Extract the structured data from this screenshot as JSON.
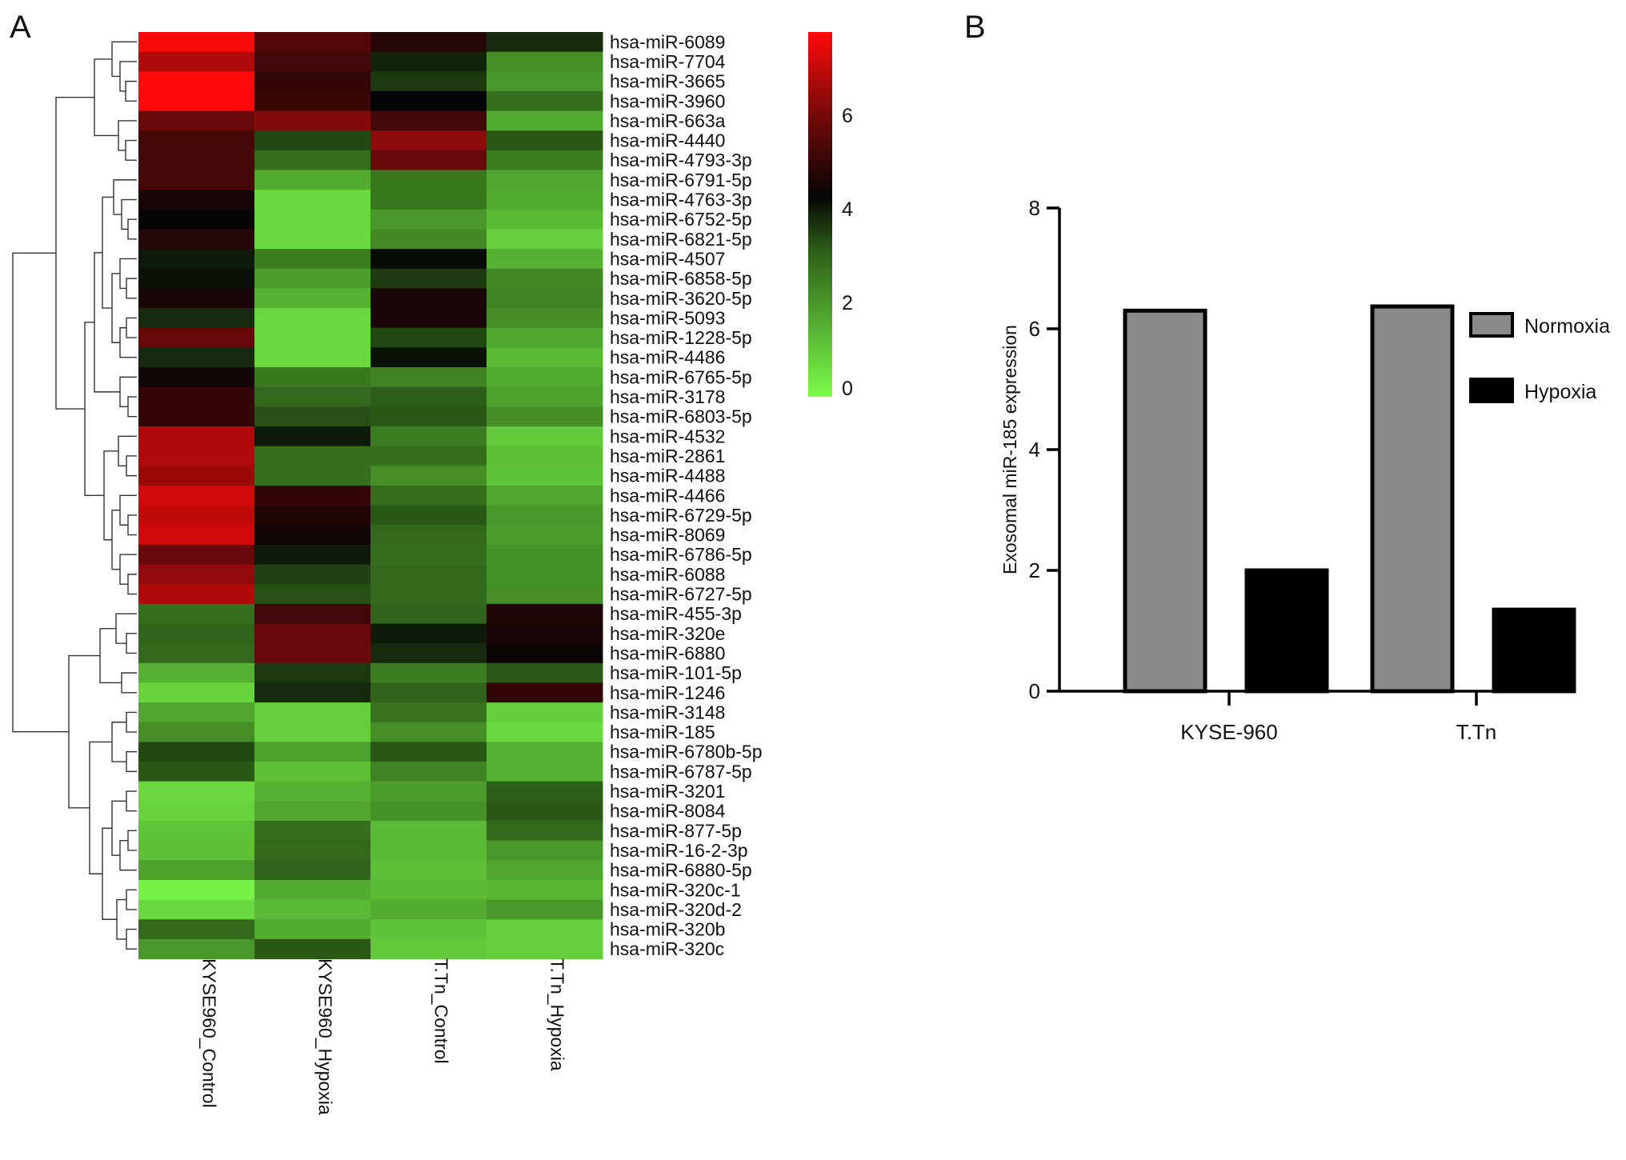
{
  "panels": {
    "a_label": "A",
    "b_label": "B"
  },
  "chart_data": [
    {
      "type": "heatmap",
      "columns": [
        "KYSE960_Control",
        "KYSE960_Hypoxia",
        "T.Tn_Control",
        "T.Tn_Hypoxia"
      ],
      "rows": [
        "hsa-miR-6089",
        "hsa-miR-7704",
        "hsa-miR-3665",
        "hsa-miR-3960",
        "hsa-miR-663a",
        "hsa-miR-4440",
        "hsa-miR-4793-3p",
        "hsa-miR-6791-5p",
        "hsa-miR-4763-3p",
        "hsa-miR-6752-5p",
        "hsa-miR-6821-5p",
        "hsa-miR-4507",
        "hsa-miR-6858-5p",
        "hsa-miR-3620-5p",
        "hsa-miR-5093",
        "hsa-miR-1228-5p",
        "hsa-miR-4486",
        "hsa-miR-6765-5p",
        "hsa-miR-3178",
        "hsa-miR-6803-5p",
        "hsa-miR-4532",
        "hsa-miR-2861",
        "hsa-miR-4488",
        "hsa-miR-4466",
        "hsa-miR-6729-5p",
        "hsa-miR-8069",
        "hsa-miR-6786-5p",
        "hsa-miR-6088",
        "hsa-miR-6727-5p",
        "hsa-miR-455-3p",
        "hsa-miR-320e",
        "hsa-miR-6880",
        "hsa-miR-101-5p",
        "hsa-miR-1246",
        "hsa-miR-3148",
        "hsa-miR-185",
        "hsa-miR-6780b-5p",
        "hsa-miR-6787-5p",
        "hsa-miR-3201",
        "hsa-miR-8084",
        "hsa-miR-877-5p",
        "hsa-miR-16-2-3p",
        "hsa-miR-6880-5p",
        "hsa-miR-320c-1",
        "hsa-miR-320d-2",
        "hsa-miR-320b",
        "hsa-miR-320c"
      ],
      "values": [
        [
          7.7,
          5.5,
          4.8,
          3.8
        ],
        [
          6.8,
          5.2,
          3.9,
          2.2
        ],
        [
          7.8,
          5.0,
          3.6,
          2.0
        ],
        [
          7.8,
          5.1,
          4.3,
          2.8
        ],
        [
          5.8,
          6.2,
          5.2,
          1.6
        ],
        [
          5.3,
          3.4,
          6.3,
          3.2
        ],
        [
          5.3,
          2.8,
          5.8,
          2.5
        ],
        [
          5.3,
          1.6,
          2.6,
          1.7
        ],
        [
          4.6,
          0.7,
          2.6,
          1.6
        ],
        [
          4.3,
          0.7,
          2.0,
          1.3
        ],
        [
          4.8,
          0.7,
          2.3,
          0.9
        ],
        [
          4.0,
          2.5,
          4.2,
          1.5
        ],
        [
          4.1,
          1.9,
          3.6,
          2.3
        ],
        [
          4.6,
          1.5,
          4.6,
          2.4
        ],
        [
          3.8,
          0.7,
          4.6,
          2.2
        ],
        [
          5.8,
          0.7,
          3.4,
          1.7
        ],
        [
          3.8,
          0.7,
          4.1,
          1.3
        ],
        [
          4.5,
          2.6,
          2.4,
          1.6
        ],
        [
          5.0,
          2.9,
          3.1,
          1.8
        ],
        [
          5.0,
          3.3,
          3.2,
          2.2
        ],
        [
          6.8,
          4.0,
          2.5,
          1.0
        ],
        [
          6.8,
          2.8,
          2.8,
          1.2
        ],
        [
          6.5,
          2.8,
          2.2,
          1.1
        ],
        [
          7.2,
          5.0,
          2.8,
          1.7
        ],
        [
          7.0,
          4.7,
          3.2,
          2.0
        ],
        [
          7.2,
          4.5,
          2.9,
          1.9
        ],
        [
          5.8,
          4.0,
          2.8,
          2.1
        ],
        [
          6.4,
          3.5,
          2.9,
          2.1
        ],
        [
          6.8,
          3.3,
          2.9,
          2.2
        ],
        [
          2.8,
          5.2,
          3.0,
          4.7
        ],
        [
          3.0,
          5.8,
          4.0,
          4.6
        ],
        [
          2.9,
          5.8,
          3.8,
          4.4
        ],
        [
          1.5,
          3.6,
          2.5,
          3.2
        ],
        [
          0.8,
          3.8,
          3.0,
          5.0
        ],
        [
          1.7,
          0.9,
          2.7,
          0.9
        ],
        [
          2.2,
          0.9,
          2.2,
          0.7
        ],
        [
          3.4,
          1.8,
          3.2,
          1.5
        ],
        [
          3.2,
          1.2,
          2.4,
          1.5
        ],
        [
          0.7,
          1.5,
          1.9,
          3.1
        ],
        [
          0.8,
          1.7,
          2.1,
          3.2
        ],
        [
          1.1,
          2.8,
          1.3,
          2.9
        ],
        [
          1.2,
          2.9,
          1.3,
          2.0
        ],
        [
          1.8,
          3.0,
          1.2,
          1.7
        ],
        [
          0.2,
          1.6,
          1.3,
          1.4
        ],
        [
          0.7,
          1.3,
          1.6,
          2.0
        ],
        [
          2.9,
          1.6,
          1.1,
          0.9
        ],
        [
          2.0,
          3.2,
          1.0,
          0.9
        ]
      ],
      "legend_ticks": [
        "0",
        "2",
        "4",
        "6"
      ],
      "color_range": [
        0,
        7.8
      ]
    },
    {
      "type": "bar",
      "categories": [
        "KYSE-960",
        "T.Tn"
      ],
      "series": [
        {
          "name": "Normoxia",
          "values": [
            6.3,
            6.37
          ],
          "color": "#8a8a8a"
        },
        {
          "name": "Hypoxia",
          "values": [
            2.0,
            1.35
          ],
          "color": "#000000"
        }
      ],
      "ylabel": "Exosomal miR-185 expression",
      "xlabel": "",
      "ylim": [
        0,
        8
      ],
      "yticks": [
        "0",
        "2",
        "4",
        "6",
        "8"
      ],
      "legend_position": "right"
    }
  ]
}
